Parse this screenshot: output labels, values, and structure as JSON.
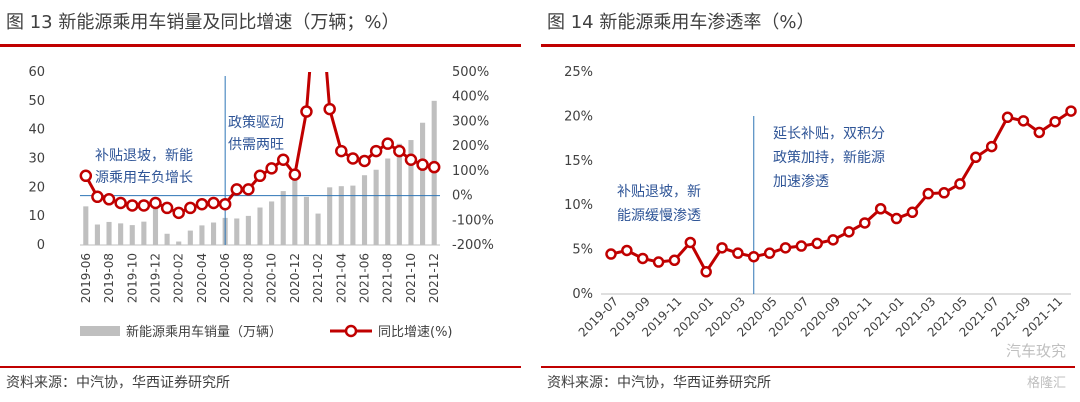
{
  "left_panel": {
    "title": "图 13 新能源乘用车销量及同比增速（万辆；%）",
    "source": "资料来源：中汽协，华西证券研究所",
    "annotations": [
      "补贴退坡，新能",
      "源乘用车负增长",
      "政策驱动",
      "供需两旺"
    ]
  },
  "right_panel": {
    "title": "图 14 新能源乘用车渗透率（%）",
    "source": "资料来源：中汽协，华西证券研究所",
    "annotations": [
      "补贴退坡，新",
      "能源缓慢渗透",
      "延长补贴，双积分",
      "政策加持，新能源",
      "加速渗透"
    ],
    "watermark1": "汽车玫究",
    "watermark2": "格隆汇"
  },
  "colors": {
    "accent": "#c00000",
    "bar": "#bfbfbf",
    "line": "#c00000",
    "annotation": "#2f5597",
    "divider": "#2e75b6"
  },
  "chart_data": [
    {
      "type": "bar",
      "title": "图 13 新能源乘用车销量及同比增速（万辆；%）",
      "x": [
        "2019-06",
        "2019-07",
        "2019-08",
        "2019-09",
        "2019-10",
        "2019-11",
        "2019-12",
        "2020-01",
        "2020-02",
        "2020-03",
        "2020-04",
        "2020-05",
        "2020-06",
        "2020-07",
        "2020-08",
        "2020-09",
        "2020-10",
        "2020-11",
        "2020-12",
        "2021-01",
        "2021-02",
        "2021-03",
        "2021-04",
        "2021-05",
        "2021-06",
        "2021-07",
        "2021-08",
        "2021-09",
        "2021-10",
        "2021-11",
        "2021-12"
      ],
      "x_ticks": [
        "2019-06",
        "2019-08",
        "2019-10",
        "2019-12",
        "2020-02",
        "2020-04",
        "2020-06",
        "2020-08",
        "2020-10",
        "2020-12",
        "2021-02",
        "2021-04",
        "2021-06",
        "2021-08",
        "2021-10",
        "2021-12"
      ],
      "series": [
        {
          "name": "新能源乘用车销量（万辆）",
          "kind": "bar",
          "axis": "left",
          "values": [
            13.4,
            7.1,
            8.0,
            7.5,
            6.9,
            8.1,
            14.6,
            3.9,
            1.2,
            5.0,
            6.8,
            7.8,
            9.4,
            9.2,
            10.1,
            13.0,
            15.1,
            18.7,
            22.6,
            16.7,
            10.9,
            20.0,
            20.4,
            20.6,
            24.2,
            26.1,
            30.0,
            35.1,
            36.4,
            42.4,
            50.0
          ]
        },
        {
          "name": "同比增速(%)",
          "kind": "line",
          "axis": "right",
          "values": [
            80,
            -5,
            -15,
            -30,
            -40,
            -40,
            -30,
            -50,
            -70,
            -50,
            -35,
            -30,
            -35,
            25,
            25,
            80,
            110,
            145,
            85,
            340,
            930,
            350,
            180,
            150,
            140,
            180,
            210,
            180,
            145,
            125,
            115
          ]
        }
      ],
      "y_left": {
        "range": [
          0,
          60
        ],
        "ticks": [
          "0",
          "10",
          "20",
          "30",
          "40",
          "50",
          "60"
        ]
      },
      "y_right": {
        "range": [
          -200,
          500
        ],
        "ticks": [
          "-200%",
          "-100%",
          "0%",
          "100%",
          "200%",
          "300%",
          "400%",
          "500%"
        ]
      },
      "legend": {
        "placement": "bottom",
        "items": [
          "新能源乘用车销量（万辆）",
          "同比增速(%)"
        ]
      },
      "divider_at": "2020-06"
    },
    {
      "type": "line",
      "title": "图 14 新能源乘用车渗透率（%）",
      "x": [
        "2019-07",
        "2019-08",
        "2019-09",
        "2019-10",
        "2019-11",
        "2019-12",
        "2020-01",
        "2020-02",
        "2020-03",
        "2020-04",
        "2020-05",
        "2020-06",
        "2020-07",
        "2020-08",
        "2020-09",
        "2020-10",
        "2020-11",
        "2020-12",
        "2021-01",
        "2021-02",
        "2021-03",
        "2021-04",
        "2021-05",
        "2021-06",
        "2021-07",
        "2021-08",
        "2021-09",
        "2021-10",
        "2021-11",
        "2021-12"
      ],
      "x_ticks": [
        "2019-07",
        "2019-09",
        "2019-11",
        "2020-01",
        "2020-03",
        "2020-05",
        "2020-07",
        "2020-09",
        "2020-11",
        "2021-01",
        "2021-03",
        "2021-05",
        "2021-07",
        "2021-09",
        "2021-11"
      ],
      "series": [
        {
          "name": "渗透率",
          "values": [
            4.5,
            4.9,
            4.0,
            3.6,
            3.8,
            5.8,
            2.5,
            5.2,
            4.6,
            4.2,
            4.6,
            5.2,
            5.4,
            5.7,
            6.1,
            7.0,
            8.0,
            9.6,
            8.5,
            9.2,
            11.3,
            11.4,
            12.4,
            15.4,
            16.6,
            19.9,
            19.5,
            18.2,
            19.4,
            20.6
          ]
        }
      ],
      "y": {
        "range": [
          0,
          25
        ],
        "ticks": [
          "0%",
          "5%",
          "10%",
          "15%",
          "20%",
          "25%"
        ]
      },
      "grid": false,
      "divider_at": "2020-04"
    }
  ]
}
